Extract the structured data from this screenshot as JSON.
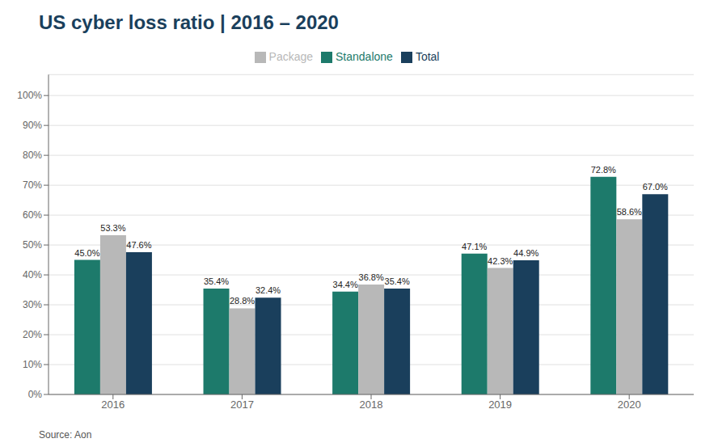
{
  "chart_data": {
    "type": "bar",
    "title": "US cyber loss ratio | 2016 – 2020",
    "annotations": [
      "Source: Aon"
    ],
    "categories": [
      "2016",
      "2017",
      "2018",
      "2019",
      "2020"
    ],
    "series": [
      {
        "name": "Standalone",
        "color": "#1d7a6b",
        "values": [
          45.0,
          35.4,
          34.4,
          47.1,
          72.8
        ],
        "value_labels": [
          "45.0%",
          "35.4%",
          "34.4%",
          "47.1%",
          "72.8%"
        ]
      },
      {
        "name": "Package",
        "color": "#b8b8b8",
        "values": [
          53.3,
          28.8,
          36.8,
          42.3,
          58.6
        ],
        "value_labels": [
          "53.3%",
          "28.8%",
          "36.8%",
          "42.3%",
          "58.6%"
        ]
      },
      {
        "name": "Total",
        "color": "#1a3f5c",
        "values": [
          47.6,
          32.4,
          35.4,
          44.9,
          67.0
        ],
        "value_labels": [
          "47.6%",
          "32.4%",
          "35.4%",
          "44.9%",
          "67.0%"
        ]
      }
    ],
    "ylim": [
      0,
      107
    ],
    "yticks": [
      {
        "value": 0,
        "label": "0%"
      },
      {
        "value": 10,
        "label": "10%"
      },
      {
        "value": 20,
        "label": "20%"
      },
      {
        "value": 30,
        "label": "30%"
      },
      {
        "value": 40,
        "label": "40%"
      },
      {
        "value": 50,
        "label": "50%"
      },
      {
        "value": 60,
        "label": "60%"
      },
      {
        "value": 70,
        "label": "70%"
      },
      {
        "value": 80,
        "label": "80%"
      },
      {
        "value": 90,
        "label": "90%"
      },
      {
        "value": 100,
        "label": "100%"
      }
    ],
    "grid": true,
    "legend": "top",
    "data_labels": true
  }
}
